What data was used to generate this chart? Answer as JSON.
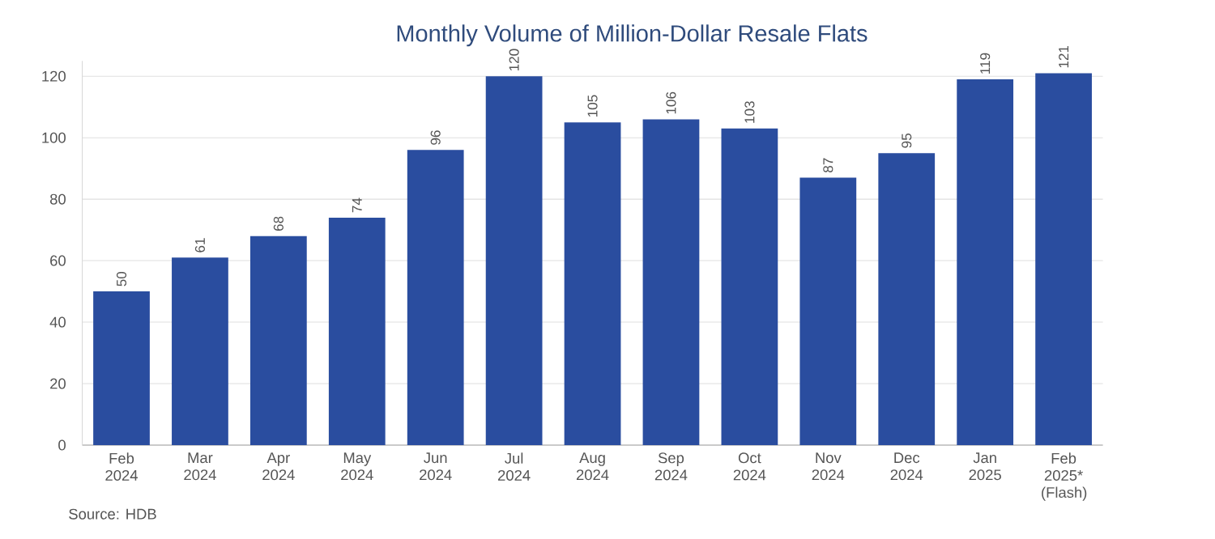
{
  "chart_data": {
    "type": "bar",
    "title": "Monthly Volume of Million-Dollar Resale Flats",
    "categories": [
      "Feb 2024",
      "Mar 2024",
      "Apr 2024",
      "May 2024",
      "Jun 2024",
      "Jul 2024",
      "Aug 2024",
      "Sep 2024",
      "Oct 2024",
      "Nov 2024",
      "Dec 2024",
      "Jan 2025",
      "Feb 2025* (Flash)"
    ],
    "values": [
      50,
      61,
      68,
      74,
      96,
      120,
      105,
      106,
      103,
      87,
      95,
      119,
      121
    ],
    "color": "#2a4d9f",
    "ylim": [
      0,
      125
    ],
    "yticks": [
      0,
      20,
      40,
      60,
      80,
      100,
      120
    ],
    "grid": "y",
    "data_labels": true,
    "annotations": [
      "Source: HDB"
    ]
  }
}
